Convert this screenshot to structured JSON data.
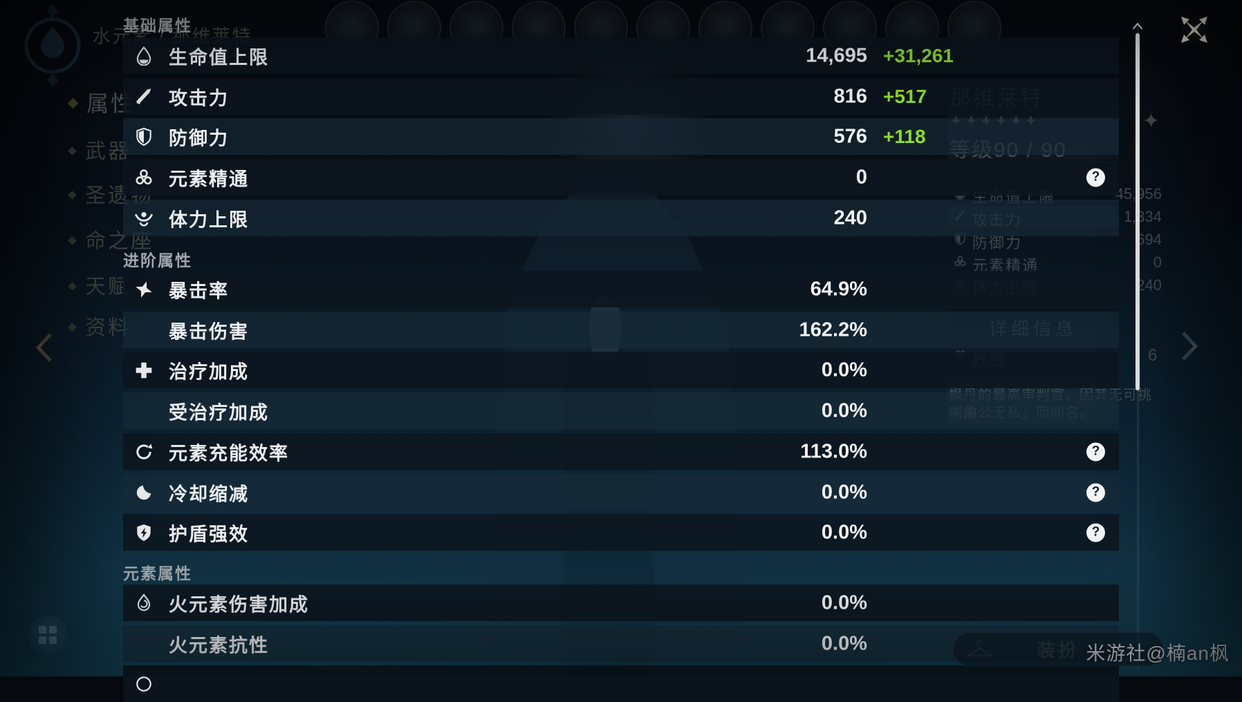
{
  "colors": {
    "bonus_green": "#8FDF1F"
  },
  "misc": {
    "help_glyph": "?"
  },
  "top": {
    "element_text": "水元素 / 那维莱特",
    "avatar_count": 11
  },
  "sidebar": {
    "items": [
      {
        "label": "属性",
        "active": true
      },
      {
        "label": "武器",
        "active": false
      },
      {
        "label": "圣遗物",
        "active": false
      },
      {
        "label": "命之座",
        "active": false
      },
      {
        "label": "天赋",
        "active": false
      },
      {
        "label": "资料",
        "active": false
      }
    ]
  },
  "header_panel": {
    "sections": [
      {
        "title": "基础属性",
        "rows": [
          {
            "label": "生命值上限",
            "icon": "hp-droplet",
            "value": "14,695",
            "bonus": "+31,261",
            "help": false,
            "shade": "dark"
          },
          {
            "label": "攻击力",
            "icon": "attack-sword",
            "value": "816",
            "bonus": "+517",
            "help": false,
            "shade": "dark"
          },
          {
            "label": "防御力",
            "icon": "defense-shield",
            "value": "576",
            "bonus": "+118",
            "help": false,
            "shade": "light"
          },
          {
            "label": "元素精通",
            "icon": "elemental-mastery",
            "value": "0",
            "bonus": "",
            "help": true,
            "shade": "dark"
          },
          {
            "label": "体力上限",
            "icon": "stamina",
            "value": "240",
            "bonus": "",
            "help": false,
            "shade": "light"
          }
        ]
      },
      {
        "title": "进阶属性",
        "rows": [
          {
            "label": "暴击率",
            "icon": "crit-rate",
            "value": "64.9%",
            "bonus": "",
            "help": false,
            "shade": "dark"
          },
          {
            "label": "暴击伤害",
            "icon": null,
            "value": "162.2%",
            "bonus": "",
            "help": false,
            "shade": "light"
          },
          {
            "label": "治疗加成",
            "icon": "healing-plus",
            "value": "0.0%",
            "bonus": "",
            "help": false,
            "shade": "dark"
          },
          {
            "label": "受治疗加成",
            "icon": null,
            "value": "0.0%",
            "bonus": "",
            "help": false,
            "shade": "light"
          },
          {
            "label": "元素充能效率",
            "icon": "energy-recharge",
            "value": "113.0%",
            "bonus": "",
            "help": true,
            "shade": "dark"
          },
          {
            "label": "冷却缩减",
            "icon": "cooldown",
            "value": "0.0%",
            "bonus": "",
            "help": true,
            "shade": "light"
          },
          {
            "label": "护盾强效",
            "icon": "shield-strength",
            "value": "0.0%",
            "bonus": "",
            "help": true,
            "shade": "dark"
          }
        ]
      },
      {
        "title": "元素属性",
        "rows": [
          {
            "label": "火元素伤害加成",
            "icon": "pyro",
            "value": "0.0%",
            "bonus": "",
            "help": false,
            "shade": "dark"
          },
          {
            "label": "火元素抗性",
            "icon": null,
            "value": "0.0%",
            "bonus": "",
            "help": false,
            "shade": "light"
          },
          {
            "label": "",
            "icon": "element-partial",
            "value": "",
            "bonus": "",
            "help": false,
            "shade": "dark",
            "partial": true
          }
        ]
      }
    ]
  },
  "character_panel": {
    "name": "那维莱特",
    "stars_text": "✦✦✦✦✦✦",
    "level": "等级90 / 90",
    "stats": [
      {
        "label": "生命值上限",
        "icon": "hp-droplet",
        "value": "45,956"
      },
      {
        "label": "攻击力",
        "icon": "attack-sword",
        "value": "1,334"
      },
      {
        "label": "防御力",
        "icon": "defense-shield",
        "value": "694"
      },
      {
        "label": "元素精通",
        "icon": "elemental-mastery",
        "value": "0"
      },
      {
        "label": "体力上限",
        "icon": "stamina",
        "value": "240"
      }
    ],
    "details_button": "详细信息",
    "friendship": {
      "label": "好感",
      "value": "6"
    },
    "description_lines": [
      "枫丹的最高审判官，因其无可挑剔的",
      "「秉公无私」而闻名。"
    ],
    "sparkle_glyph": "✦"
  },
  "footer": {
    "dress_label": "装扮",
    "watermark": "米游社@楠an枫"
  }
}
